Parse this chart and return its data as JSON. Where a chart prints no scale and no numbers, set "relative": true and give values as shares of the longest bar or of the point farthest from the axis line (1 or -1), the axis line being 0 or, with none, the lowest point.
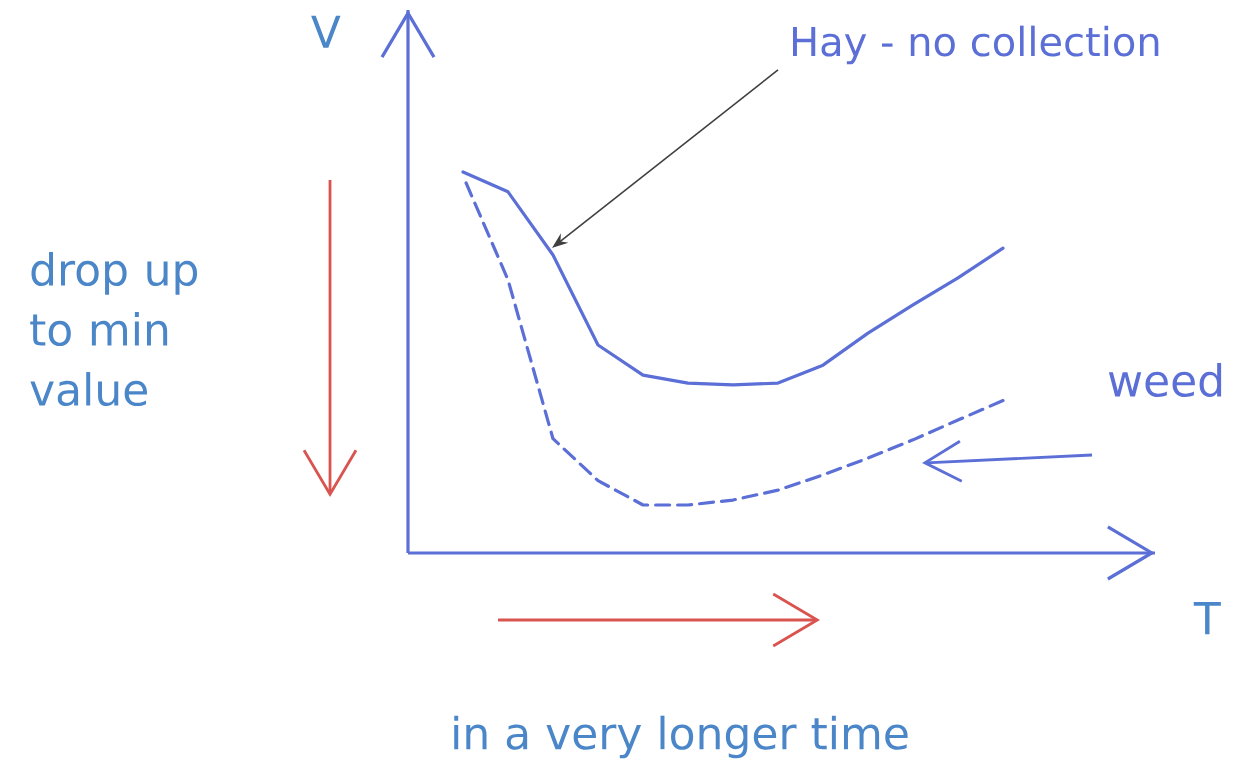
{
  "chart_data": {
    "type": "line",
    "relative": true,
    "xlabel": "T",
    "ylabel": "V",
    "legend": false,
    "grid": false,
    "marker": "none",
    "categories": [
      null,
      null,
      null,
      null,
      null,
      null,
      null,
      null,
      null,
      null,
      null,
      null,
      null
    ],
    "series": [
      {
        "name": "Hay - no collection",
        "color": "#5b6fd6",
        "line_style": "solid",
        "values": [
          1.0,
          0.948,
          0.782,
          0.546,
          0.467,
          0.446,
          0.441,
          0.446,
          0.493,
          0.577,
          0.651,
          0.722,
          0.8
        ]
      },
      {
        "name": "weed",
        "color": "#5b6fd6",
        "line_style": "dashed",
        "values": [
          0.99,
          0.717,
          0.3,
          0.19,
          0.126,
          0.126,
          0.139,
          0.165,
          0.205,
          0.249,
          0.297,
          0.349,
          0.4
        ]
      }
    ],
    "annotations": [
      "drop up to min value",
      "in a very longer time"
    ]
  }
}
